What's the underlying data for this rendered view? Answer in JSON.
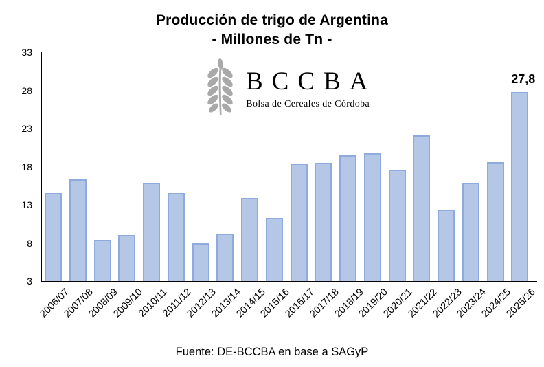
{
  "page": {
    "background": "#ffffff"
  },
  "chart": {
    "title_line1": "Producción de trigo de Argentina",
    "title_line2": "- Millones de Tn -"
  },
  "watermark": {
    "acronym": "BCCBA",
    "name": "Bolsa de Cereales de Córdoba",
    "color": "#a9a9a9"
  },
  "footer": {
    "source": "Fuente: DE-BCCBA en base a SAGyP"
  },
  "chart_data": {
    "type": "bar",
    "title": "Producción de trigo de Argentina",
    "subtitle": "- Millones de Tn -",
    "xlabel": "",
    "ylabel": "",
    "categories": [
      "2006/07",
      "2007/08",
      "2008/09",
      "2009/10",
      "2010/11",
      "2011/12",
      "2012/13",
      "2013/14",
      "2014/15",
      "2015/16",
      "2016/17",
      "2017/18",
      "2018/19",
      "2019/20",
      "2020/21",
      "2021/22",
      "2022/23",
      "2023/24",
      "2024/25",
      "2025/26"
    ],
    "values": [
      14.5,
      16.3,
      8.4,
      9.0,
      15.9,
      14.5,
      8.0,
      9.2,
      13.9,
      11.3,
      18.4,
      18.5,
      19.5,
      19.8,
      17.6,
      22.1,
      12.4,
      15.9,
      18.6,
      27.8
    ],
    "unit": "Millones de Tn",
    "ylim": [
      3,
      33
    ],
    "yticks": [
      3,
      8,
      13,
      18,
      23,
      28,
      33
    ],
    "grid": false,
    "legend": false,
    "bar_fill": "#b4c7e7",
    "bar_border": "#8faadc",
    "data_labels": [
      {
        "category": "2025/26",
        "label": "27,8"
      }
    ]
  }
}
